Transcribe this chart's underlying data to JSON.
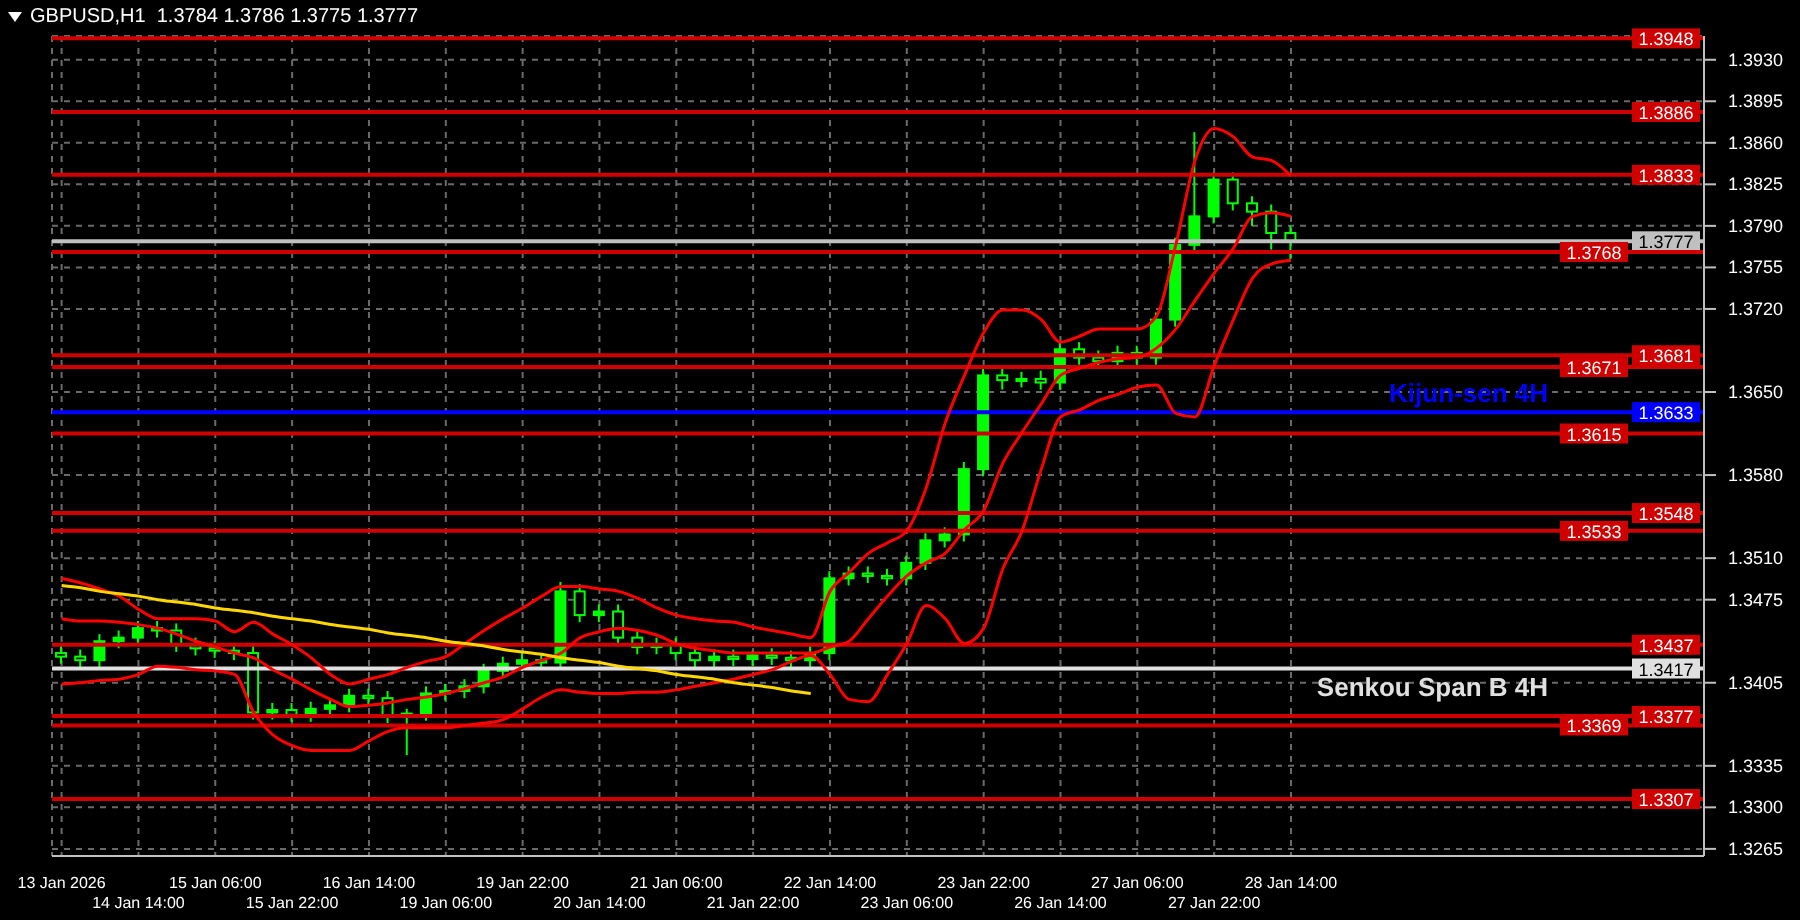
{
  "chart_data": {
    "type": "candlestick",
    "title": "GBPUSD,H1  1.3784 1.3786 1.3775 1.3777",
    "color": "#00ff00",
    "grid": true,
    "categories": [
      "13 Jan 2026",
      null,
      null,
      null,
      "14 Jan 14:00",
      null,
      null,
      null,
      "15 Jan 06:00",
      null,
      null,
      null,
      "15 Jan 22:00",
      null,
      null,
      null,
      "16 Jan 14:00",
      null,
      null,
      null,
      "19 Jan 06:00",
      null,
      null,
      null,
      "19 Jan 22:00",
      null,
      null,
      null,
      "20 Jan 14:00",
      null,
      null,
      null,
      "21 Jan 06:00",
      null,
      null,
      null,
      "21 Jan 22:00",
      null,
      null,
      null,
      "22 Jan 14:00",
      null,
      null,
      null,
      "23 Jan 06:00",
      null,
      null,
      null,
      "23 Jan 22:00",
      null,
      null,
      null,
      "26 Jan 14:00",
      null,
      null,
      null,
      "27 Jan 06:00",
      null,
      null,
      null,
      "27 Jan 22:00",
      null,
      null,
      null,
      "28 Jan 14:00",
      null,
      null,
      null,
      null,
      null,
      null,
      null,
      null,
      null,
      null,
      null,
      null,
      null,
      null,
      null,
      null,
      null,
      null,
      null,
      null,
      null
    ],
    "ohlc": [
      [
        1.343,
        1.3436,
        1.3421,
        1.3427
      ],
      [
        1.3427,
        1.3433,
        1.3418,
        1.3424
      ],
      [
        1.3424,
        1.3446,
        1.3418,
        1.344
      ],
      [
        1.344,
        1.3449,
        1.3434,
        1.3443
      ],
      [
        1.3443,
        1.3457,
        1.3437,
        1.3451
      ],
      [
        1.3451,
        1.3457,
        1.3443,
        1.3449
      ],
      [
        1.3449,
        1.3455,
        1.3431,
        1.3437
      ],
      [
        1.3437,
        1.3443,
        1.3428,
        1.3434
      ],
      [
        1.3434,
        1.344,
        1.3426,
        1.3432
      ],
      [
        1.3432,
        1.3438,
        1.3424,
        1.343
      ],
      [
        1.343,
        1.3436,
        1.3374,
        1.338
      ],
      [
        1.338,
        1.3388,
        1.3374,
        1.3382
      ],
      [
        1.3382,
        1.3388,
        1.3372,
        1.3378
      ],
      [
        1.3378,
        1.3389,
        1.3372,
        1.3383
      ],
      [
        1.3383,
        1.3392,
        1.3377,
        1.3386
      ],
      [
        1.3386,
        1.34,
        1.338,
        1.3394
      ],
      [
        1.3394,
        1.34,
        1.3386,
        1.3392
      ],
      [
        1.3392,
        1.3398,
        1.3371,
        1.3377
      ],
      [
        1.3377,
        1.3383,
        1.3344,
        1.3379
      ],
      [
        1.3379,
        1.3402,
        1.3373,
        1.3396
      ],
      [
        1.3396,
        1.3404,
        1.339,
        1.3398
      ],
      [
        1.3398,
        1.3408,
        1.3392,
        1.3402
      ],
      [
        1.3402,
        1.3421,
        1.3396,
        1.3415
      ],
      [
        1.3415,
        1.3427,
        1.3409,
        1.3421
      ],
      [
        1.3421,
        1.343,
        1.3415,
        1.3424
      ],
      [
        1.3424,
        1.343,
        1.3416,
        1.3422
      ],
      [
        1.3422,
        1.349,
        1.3416,
        1.3482
      ],
      [
        1.3482,
        1.3488,
        1.3456,
        1.3462
      ],
      [
        1.3462,
        1.3471,
        1.3456,
        1.3465
      ],
      [
        1.3465,
        1.3471,
        1.3437,
        1.3443
      ],
      [
        1.3443,
        1.3449,
        1.3429,
        1.3435
      ],
      [
        1.3435,
        1.3443,
        1.3429,
        1.3437
      ],
      [
        1.3437,
        1.3443,
        1.3424,
        1.343
      ],
      [
        1.343,
        1.3436,
        1.3418,
        1.3424
      ],
      [
        1.3424,
        1.3433,
        1.3418,
        1.3427
      ],
      [
        1.3427,
        1.3433,
        1.3419,
        1.3425
      ],
      [
        1.3425,
        1.3432,
        1.3419,
        1.3428
      ],
      [
        1.3428,
        1.3434,
        1.342,
        1.3426
      ],
      [
        1.3426,
        1.3432,
        1.3418,
        1.3424
      ],
      [
        1.3424,
        1.3436,
        1.3418,
        1.343
      ],
      [
        1.343,
        1.3499,
        1.3424,
        1.3493
      ],
      [
        1.3493,
        1.3503,
        1.3487,
        1.3497
      ],
      [
        1.3497,
        1.3503,
        1.3489,
        1.3495
      ],
      [
        1.3495,
        1.3501,
        1.3487,
        1.3493
      ],
      [
        1.3493,
        1.3512,
        1.3487,
        1.3506
      ],
      [
        1.3506,
        1.3531,
        1.35,
        1.3525
      ],
      [
        1.3525,
        1.3536,
        1.3519,
        1.353
      ],
      [
        1.353,
        1.3591,
        1.3524,
        1.3585
      ],
      [
        1.3585,
        1.367,
        1.3579,
        1.3664
      ],
      [
        1.3664,
        1.367,
        1.3652,
        1.366
      ],
      [
        1.366,
        1.3667,
        1.3654,
        1.3661
      ],
      [
        1.3661,
        1.3668,
        1.3652,
        1.3658
      ],
      [
        1.3658,
        1.3692,
        1.3652,
        1.3686
      ],
      [
        1.3686,
        1.3692,
        1.3673,
        1.3679
      ],
      [
        1.3679,
        1.3685,
        1.367,
        1.3676
      ],
      [
        1.3676,
        1.3689,
        1.367,
        1.3683
      ],
      [
        1.3683,
        1.3689,
        1.3673,
        1.3679
      ],
      [
        1.3679,
        1.3717,
        1.3673,
        1.3711
      ],
      [
        1.3711,
        1.378,
        1.3705,
        1.3774
      ],
      [
        1.3774,
        1.3869,
        1.3768,
        1.3798
      ],
      [
        1.3798,
        1.3835,
        1.3792,
        1.3829
      ],
      [
        1.3829,
        1.3835,
        1.3803,
        1.3809
      ],
      [
        1.3809,
        1.3815,
        1.379,
        1.3802
      ],
      [
        1.3802,
        1.3808,
        1.377,
        1.3784
      ],
      [
        1.3784,
        1.379,
        1.3762,
        1.3777
      ],
      null,
      null,
      null,
      null,
      null,
      null,
      null,
      null,
      null,
      null,
      null,
      null,
      null,
      null,
      null,
      null,
      null,
      null,
      null,
      null,
      null
    ],
    "series": [
      {
        "type": "line",
        "color": "#ff0000",
        "values": [
          1.3493,
          1.3489,
          1.3484,
          1.3478,
          1.3467,
          1.3459,
          1.3459,
          1.3459,
          1.3457,
          1.3448,
          1.3456,
          1.3446,
          1.3437,
          1.3426,
          1.3412,
          1.3404,
          1.3408,
          1.3412,
          1.3418,
          1.3423,
          1.3427,
          1.3438,
          1.3449,
          1.3459,
          1.3468,
          1.3478,
          1.3486,
          1.3486,
          1.3484,
          1.3482,
          1.3476,
          1.3468,
          1.3462,
          1.3459,
          1.3457,
          1.3456,
          1.3452,
          1.3449,
          1.3446,
          1.3443,
          1.3482,
          1.3498,
          1.3514,
          1.3523,
          1.3533,
          1.3569,
          1.3624,
          1.3664,
          1.37,
          1.3719,
          1.3719,
          1.3711,
          1.3692,
          1.3697,
          1.3703,
          1.3703,
          1.3703,
          1.3714,
          1.3774,
          1.3845,
          1.3872,
          1.3865,
          1.3848,
          1.3845,
          1.3832,
          null,
          null,
          null,
          null,
          null,
          null,
          null,
          null,
          null,
          null,
          null,
          null,
          null,
          null,
          null,
          null,
          null,
          null,
          null,
          null,
          null
        ]
      },
      {
        "type": "line",
        "color": "#ff0000",
        "values": [
          1.3459,
          1.3457,
          1.3457,
          1.3456,
          1.3454,
          1.3451,
          1.3446,
          1.344,
          1.3435,
          1.343,
          1.3426,
          1.3416,
          1.3408,
          1.3399,
          1.3391,
          1.3385,
          1.3386,
          1.3388,
          1.3391,
          1.3393,
          1.3396,
          1.34,
          1.3405,
          1.341,
          1.3418,
          1.3424,
          1.343,
          1.3443,
          1.3448,
          1.3451,
          1.3449,
          1.3445,
          1.3438,
          1.3434,
          1.3432,
          1.343,
          1.343,
          1.343,
          1.343,
          1.343,
          1.3435,
          1.344,
          1.3459,
          1.3478,
          1.3495,
          1.3506,
          1.3514,
          1.3534,
          1.355,
          1.359,
          1.3616,
          1.364,
          1.3664,
          1.367,
          1.3675,
          1.3678,
          1.3679,
          1.3687,
          1.3703,
          1.3727,
          1.375,
          1.3771,
          1.3798,
          1.3801,
          1.3798,
          null,
          null,
          null,
          null,
          null,
          null,
          null,
          null,
          null,
          null,
          null,
          null,
          null,
          null,
          null,
          null,
          null,
          null,
          null,
          null,
          null
        ]
      },
      {
        "type": "line",
        "color": "#ff0000",
        "values": [
          1.3404,
          1.3405,
          1.3407,
          1.3408,
          1.3412,
          1.3419,
          1.3418,
          1.3416,
          1.3415,
          1.3412,
          1.338,
          1.3361,
          1.3352,
          1.3348,
          1.3348,
          1.3348,
          1.3356,
          1.3364,
          1.3367,
          1.3367,
          1.3367,
          1.3369,
          1.3371,
          1.3374,
          1.3383,
          1.3393,
          1.3399,
          1.3397,
          1.3396,
          1.3396,
          1.3397,
          1.3397,
          1.3399,
          1.3402,
          1.3405,
          1.3408,
          1.3412,
          1.3416,
          1.3423,
          1.3428,
          1.3412,
          1.3391,
          1.3389,
          1.3412,
          1.3438,
          1.347,
          1.3459,
          1.3438,
          1.3451,
          1.3501,
          1.3533,
          1.3585,
          1.3629,
          1.3635,
          1.3643,
          1.3648,
          1.3654,
          1.3656,
          1.3632,
          1.3629,
          1.3672,
          1.3711,
          1.3746,
          1.3758,
          1.3761,
          null,
          null,
          null,
          null,
          null,
          null,
          null,
          null,
          null,
          null,
          null,
          null,
          null,
          null,
          null,
          null,
          null,
          null,
          null,
          null,
          null
        ]
      },
      {
        "type": "line",
        "color": "#ffd700",
        "values": [
          1.3487,
          1.3485,
          1.3482,
          1.348,
          1.3478,
          1.3475,
          1.3473,
          1.3471,
          1.3468,
          1.3466,
          1.3464,
          1.3461,
          1.3459,
          1.3457,
          1.3454,
          1.3452,
          1.345,
          1.3447,
          1.3445,
          1.3443,
          1.344,
          1.3438,
          1.3436,
          1.3433,
          1.3431,
          1.3429,
          1.3426,
          1.3424,
          1.3422,
          1.3419,
          1.3417,
          1.3415,
          1.3412,
          1.341,
          1.3408,
          1.3405,
          1.3403,
          1.3401,
          1.3398,
          1.3396,
          null,
          null,
          null,
          null,
          null,
          null,
          null,
          null,
          null,
          null,
          null,
          null,
          null,
          null,
          null,
          null,
          null,
          null,
          null,
          null,
          null,
          null,
          null,
          null,
          null,
          null,
          null,
          null,
          null,
          null,
          null,
          null,
          null,
          null,
          null,
          null,
          null,
          null,
          null,
          null,
          null,
          null,
          null,
          null,
          null,
          null
        ]
      }
    ],
    "ylim": [
      1.3259,
      1.395
    ],
    "yticks": [
      {
        "value": 1.393,
        "label": "1.3930"
      },
      1.3895,
      {
        "value": 1.386,
        "label": "1.3860"
      },
      1.3825,
      {
        "value": 1.379,
        "label": "1.3790"
      },
      1.3755,
      {
        "value": 1.372,
        "label": "1.3720"
      },
      {
        "value": 1.365,
        "label": "1.3650"
      },
      {
        "value": 1.358,
        "label": "1.3580"
      },
      {
        "value": 1.351,
        "label": "1.3510"
      },
      1.3475,
      1.3405,
      1.3335,
      {
        "value": 1.33,
        "label": "1.3300"
      },
      1.3265
    ],
    "ref_lines": [
      {
        "axis": "y",
        "value": 1.3948,
        "label": "1.3948",
        "color": "#d00000"
      },
      {
        "axis": "y",
        "value": 1.3886,
        "label": "1.3886",
        "color": "#d00000"
      },
      {
        "axis": "y",
        "value": 1.3833,
        "label": "1.3833",
        "color": "#d00000"
      },
      {
        "axis": "y",
        "value": 1.3777,
        "label": "1.3777",
        "color": "#c0c0c0"
      },
      {
        "axis": "y",
        "value": 1.3768,
        "label": "1.3768",
        "color": "#d00000"
      },
      {
        "axis": "y",
        "value": 1.3681,
        "label": "1.3681",
        "color": "#d00000"
      },
      {
        "axis": "y",
        "value": 1.3671,
        "label": "1.3671",
        "color": "#d00000"
      },
      {
        "axis": "y",
        "value": 1.3633,
        "label": "1.3633",
        "color": "#0000ff"
      },
      {
        "axis": "y",
        "value": 1.3615,
        "label": "1.3615",
        "color": "#d00000"
      },
      {
        "axis": "y",
        "value": 1.3548,
        "label": "1.3548",
        "color": "#d00000"
      },
      {
        "axis": "y",
        "value": 1.3533,
        "label": "1.3533",
        "color": "#d00000"
      },
      {
        "axis": "y",
        "value": 1.3437,
        "label": "1.3437",
        "color": "#d00000"
      },
      {
        "axis": "y",
        "value": 1.3417,
        "label": "1.3417",
        "color": "#e0e0e0"
      },
      {
        "axis": "y",
        "value": 1.3377,
        "label": "1.3377",
        "color": "#d00000"
      },
      {
        "axis": "y",
        "value": 1.3369,
        "label": "1.3369",
        "color": "#d00000"
      },
      {
        "axis": "y",
        "value": 1.3307,
        "label": "1.3307",
        "color": "#d00000"
      }
    ],
    "annotations": [
      {
        "text": "Kijun-sen 4H",
        "y": 1.3633
      },
      {
        "text": "Senkou Span B 4H",
        "y": 1.3417
      }
    ]
  }
}
